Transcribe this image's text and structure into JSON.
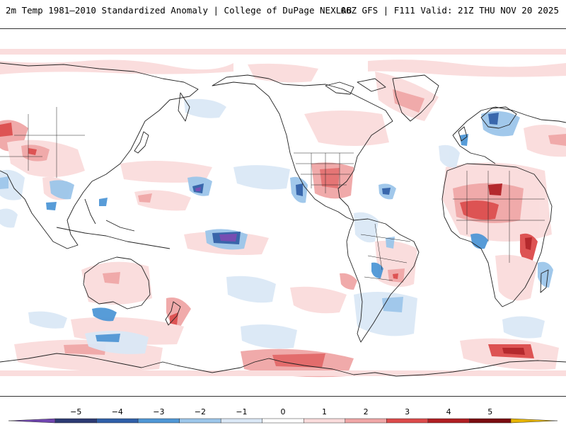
{
  "header": {
    "title_left": "2m Temp 1981–2010 Standardized Anomaly | College of DuPage NEXLAB",
    "title_right": "06Z GFS | F111 Valid: 21Z THU NOV 20 2025"
  },
  "colors": {
    "ocean_background": "#ffffff",
    "coastline": "#222222"
  },
  "colorbar": {
    "ticks": [
      "−5",
      "−4",
      "−3",
      "−2",
      "−1",
      "0",
      "1",
      "2",
      "3",
      "4",
      "5"
    ],
    "bins": [
      {
        "color": "#2c3a73"
      },
      {
        "color": "#2f5fa8"
      },
      {
        "color": "#4f97d6"
      },
      {
        "color": "#9cc6ea"
      },
      {
        "color": "#dbe8f6"
      },
      {
        "color": "#ffffff"
      },
      {
        "color": "#fadcdc"
      },
      {
        "color": "#f0a6a6"
      },
      {
        "color": "#dc4a4a"
      },
      {
        "color": "#b01e22"
      },
      {
        "color": "#7a0c10"
      }
    ],
    "low_extension_color": "#7046b0",
    "high_extension_color": "#e6b400"
  },
  "anomaly_labels": {
    "warm": "warm-anomaly-region",
    "cold": "cold-anomaly-region"
  }
}
